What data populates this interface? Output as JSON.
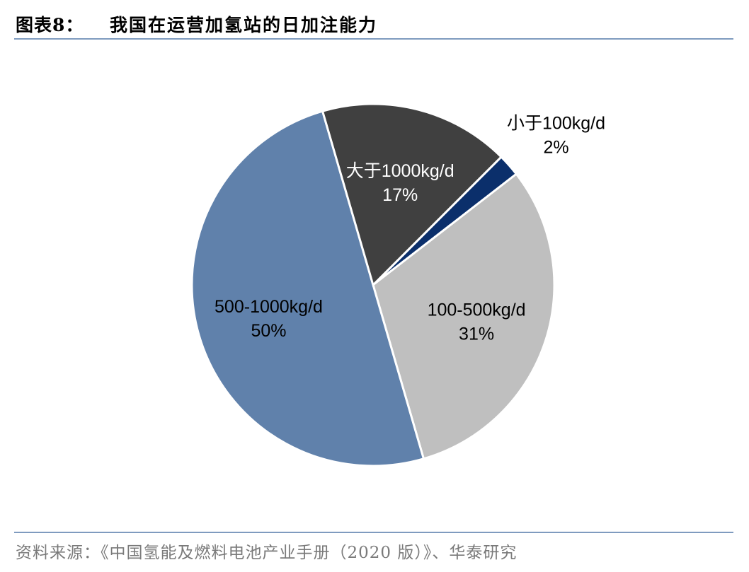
{
  "header": {
    "figure_label": "图表8：",
    "title": "我国在运营加氢站的日加注能力"
  },
  "footer": {
    "source": "资料来源：《中国氢能及燃料电池产业手册（2020 版）》、华泰研究"
  },
  "colors": {
    "slice_lt100": "#0b2f6b",
    "slice_100_500": "#bfbfbf",
    "slice_500_1000": "#6081ab",
    "slice_gt1000": "#404040",
    "rule": "#7f9bbf"
  },
  "chart_data": {
    "type": "pie",
    "title": "",
    "slices": [
      {
        "label": "小于100kg/d",
        "value": 2,
        "display": "2%",
        "color": "#0b2f6b"
      },
      {
        "label": "100-500kg/d",
        "value": 31,
        "display": "31%",
        "color": "#bfbfbf"
      },
      {
        "label": "500-1000kg/d",
        "value": 50,
        "display": "50%",
        "color": "#6081ab"
      },
      {
        "label": "大于1000kg/d",
        "value": 17,
        "display": "17%",
        "color": "#404040"
      }
    ],
    "legend": "none",
    "data_labels": "on-chart"
  }
}
